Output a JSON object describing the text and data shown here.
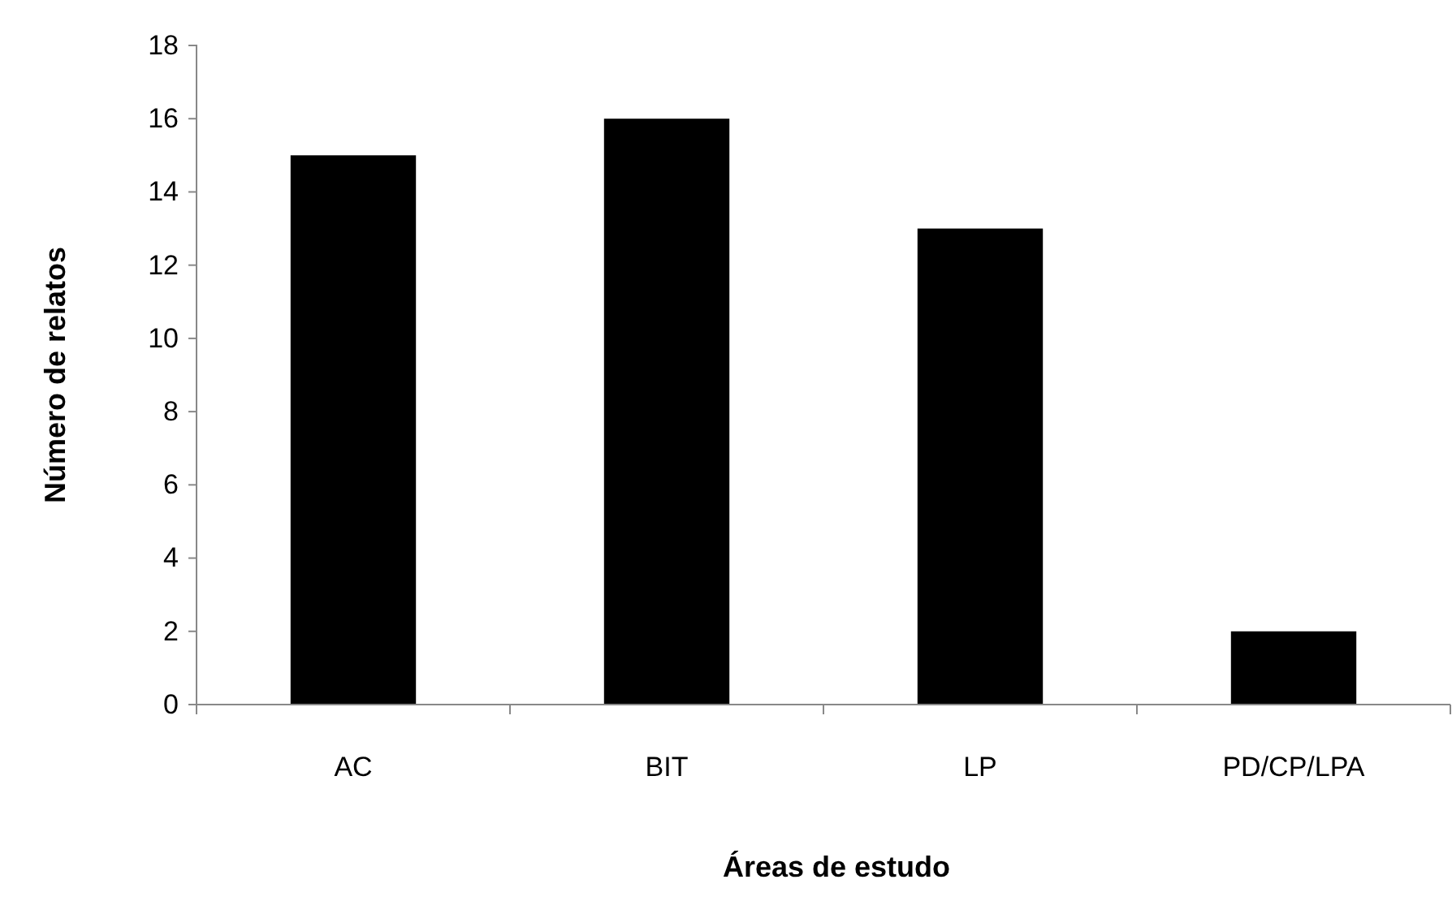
{
  "chart_data": {
    "type": "bar",
    "xlabel": "Áreas de estudo",
    "ylabel": "Número de relatos",
    "categories": [
      "AC",
      "BIT",
      "LP",
      "PD/CP/LPA"
    ],
    "values": [
      15,
      16,
      13,
      2
    ],
    "color": "#000000",
    "ylim": [
      0,
      18
    ],
    "yticks": [
      0,
      2,
      4,
      6,
      8,
      10,
      12,
      14,
      16,
      18
    ]
  }
}
